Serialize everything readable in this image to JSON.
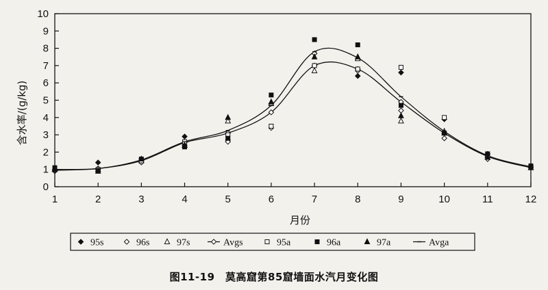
{
  "caption": "图11-19　莫高窟第85窟墙面水汽月变化图",
  "chart_data": {
    "type": "line",
    "xlabel": "月份",
    "ylabel": "含水率/(g/kg)",
    "xlim": [
      1,
      12
    ],
    "ylim": [
      0,
      10
    ],
    "x_ticks": [
      1,
      2,
      3,
      4,
      5,
      6,
      7,
      8,
      9,
      10,
      11,
      12
    ],
    "y_ticks": [
      0,
      1,
      2,
      3,
      4,
      5,
      6,
      7,
      8,
      9,
      10
    ],
    "grid": false,
    "legend_position": "bottom",
    "series": [
      {
        "name": "95s",
        "marker": "diamond-filled",
        "line": false,
        "points": [
          [
            1,
            0.9
          ],
          [
            2,
            1.4
          ],
          [
            3,
            1.6
          ],
          [
            4,
            2.9
          ],
          [
            5,
            2.7
          ],
          [
            6,
            4.8
          ],
          [
            7,
            7.7
          ],
          [
            8,
            6.4
          ],
          [
            9,
            6.6
          ],
          [
            10,
            3.9
          ],
          [
            11,
            1.9
          ],
          [
            12,
            1.2
          ]
        ]
      },
      {
        "name": "96s",
        "marker": "diamond-open",
        "line": false,
        "points": [
          [
            1,
            1.0
          ],
          [
            2,
            1.0
          ],
          [
            3,
            1.4
          ],
          [
            4,
            2.4
          ],
          [
            5,
            2.6
          ],
          [
            6,
            3.4
          ],
          [
            7,
            7.7
          ],
          [
            8,
            6.7
          ],
          [
            9,
            4.4
          ],
          [
            10,
            2.8
          ],
          [
            11,
            1.6
          ],
          [
            12,
            1.1
          ]
        ]
      },
      {
        "name": "97s",
        "marker": "triangle-open",
        "line": false,
        "points": [
          [
            1,
            1.0
          ],
          [
            2,
            1.0
          ],
          [
            3,
            1.5
          ],
          [
            4,
            2.4
          ],
          [
            5,
            3.8
          ],
          [
            6,
            4.8
          ],
          [
            7,
            6.7
          ],
          [
            8,
            7.4
          ],
          [
            9,
            3.8
          ],
          [
            10,
            3.2
          ],
          [
            11,
            1.8
          ],
          [
            12,
            1.1
          ]
        ]
      },
      {
        "name": "Avgs",
        "marker": "diamond-open",
        "line": true,
        "points": [
          [
            1,
            0.95
          ],
          [
            2,
            1.05
          ],
          [
            3,
            1.5
          ],
          [
            4,
            2.55
          ],
          [
            5,
            3.1
          ],
          [
            6,
            4.3
          ],
          [
            7,
            7.0
          ],
          [
            8,
            6.8
          ],
          [
            9,
            4.9
          ],
          [
            10,
            3.1
          ],
          [
            11,
            1.75
          ],
          [
            12,
            1.1
          ]
        ]
      },
      {
        "name": "95a",
        "marker": "square-open",
        "line": false,
        "points": [
          [
            1,
            1.0
          ],
          [
            2,
            1.0
          ],
          [
            3,
            1.5
          ],
          [
            4,
            2.6
          ],
          [
            5,
            3.0
          ],
          [
            6,
            3.5
          ],
          [
            7,
            7.0
          ],
          [
            8,
            6.8
          ],
          [
            9,
            6.9
          ],
          [
            10,
            4.0
          ],
          [
            11,
            1.8
          ],
          [
            12,
            1.2
          ]
        ]
      },
      {
        "name": "96a",
        "marker": "square-filled",
        "line": false,
        "points": [
          [
            1,
            1.1
          ],
          [
            2,
            0.9
          ],
          [
            3,
            1.6
          ],
          [
            4,
            2.3
          ],
          [
            5,
            2.8
          ],
          [
            6,
            5.3
          ],
          [
            7,
            8.5
          ],
          [
            8,
            8.2
          ],
          [
            9,
            4.7
          ],
          [
            10,
            3.1
          ],
          [
            11,
            1.9
          ],
          [
            12,
            1.2
          ]
        ]
      },
      {
        "name": "97a",
        "marker": "triangle-filled",
        "line": false,
        "points": [
          [
            1,
            1.0
          ],
          [
            2,
            0.9
          ],
          [
            3,
            1.6
          ],
          [
            4,
            2.4
          ],
          [
            5,
            4.0
          ],
          [
            6,
            4.9
          ],
          [
            7,
            7.5
          ],
          [
            8,
            7.5
          ],
          [
            9,
            4.1
          ],
          [
            10,
            3.1
          ],
          [
            11,
            1.7
          ],
          [
            12,
            1.1
          ]
        ]
      },
      {
        "name": "Avga",
        "marker": "dash",
        "line": true,
        "points": [
          [
            1,
            1.0
          ],
          [
            2,
            1.05
          ],
          [
            3,
            1.55
          ],
          [
            4,
            2.6
          ],
          [
            5,
            3.25
          ],
          [
            6,
            4.7
          ],
          [
            7,
            7.8
          ],
          [
            8,
            7.45
          ],
          [
            9,
            5.2
          ],
          [
            10,
            3.2
          ],
          [
            11,
            1.8
          ],
          [
            12,
            1.15
          ]
        ]
      }
    ]
  }
}
